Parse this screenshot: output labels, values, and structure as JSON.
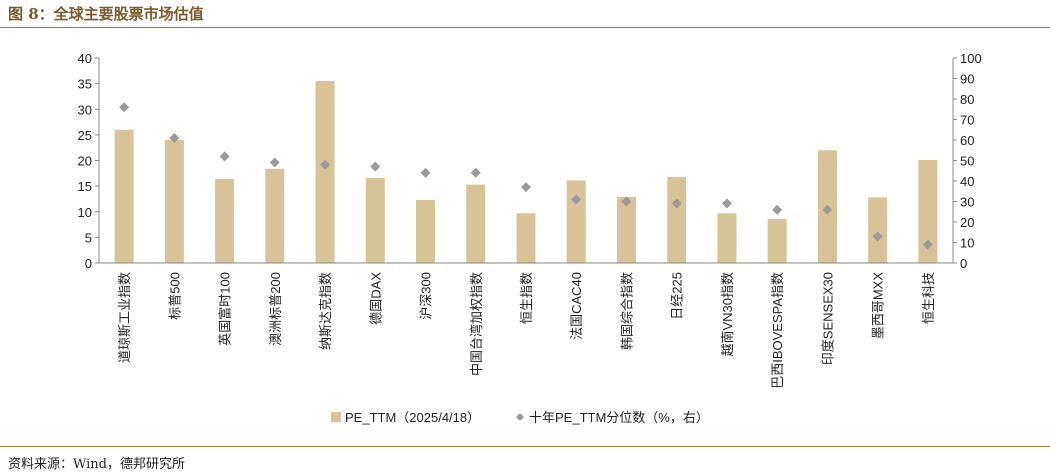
{
  "figure": {
    "title": "图 8：全球主要股票市场估值",
    "source": "资料来源：Wind，德邦研究所"
  },
  "colors": {
    "bar": "#d8c398",
    "marker": "#9a9a9a",
    "axis": "#888888",
    "accent": "#a07f3f"
  },
  "chart_data": {
    "type": "bar",
    "categories": [
      "道琼斯工业指数",
      "标普500",
      "英国富时100",
      "澳洲标普200",
      "纳斯达克指数",
      "德国DAX",
      "沪深300",
      "中国台湾加权指数",
      "恒生指数",
      "法国CAC40",
      "韩国综合指数",
      "日经225",
      "越南VN30指数",
      "巴西IBOVESPA指数",
      "印度SENSEX30",
      "墨西哥MXX",
      "恒生科技"
    ],
    "series": [
      {
        "name": "PE_TTM（2025/4/18）",
        "type": "bar",
        "axis": "left",
        "values": [
          26.0,
          24.0,
          16.4,
          18.4,
          35.5,
          16.6,
          12.3,
          15.3,
          9.7,
          16.1,
          12.9,
          16.8,
          9.7,
          8.6,
          22.0,
          12.8,
          20.1
        ]
      },
      {
        "name": "十年PE_TTM分位数（%，右）",
        "type": "scatter",
        "axis": "right",
        "values": [
          76,
          61,
          52,
          49,
          48,
          47,
          44,
          44,
          37,
          31,
          30,
          29,
          29,
          26,
          26,
          13,
          9
        ]
      }
    ],
    "ylim_left": [
      0,
      40
    ],
    "yticks_left": [
      0,
      5,
      10,
      15,
      20,
      25,
      30,
      35,
      40
    ],
    "ylim_right": [
      0,
      100
    ],
    "yticks_right": [
      0,
      10,
      20,
      30,
      40,
      50,
      60,
      70,
      80,
      90,
      100
    ],
    "grid": false,
    "legend_position": "bottom"
  }
}
